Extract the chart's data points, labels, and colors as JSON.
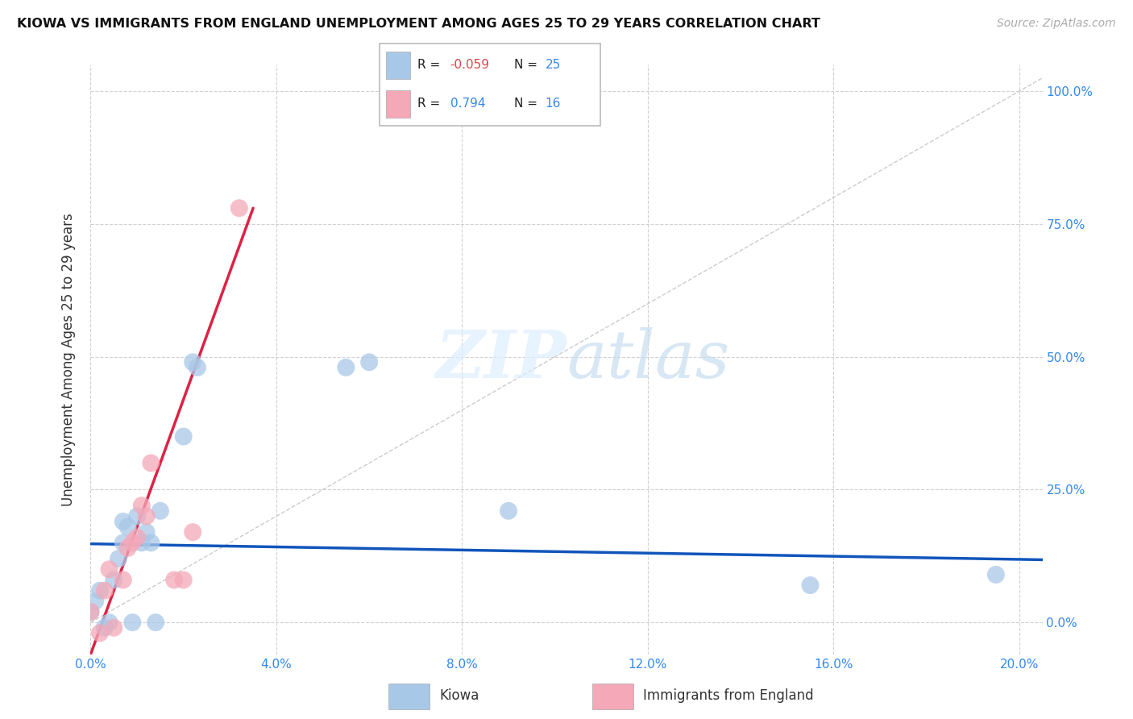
{
  "title": "KIOWA VS IMMIGRANTS FROM ENGLAND UNEMPLOYMENT AMONG AGES 25 TO 29 YEARS CORRELATION CHART",
  "source": "Source: ZipAtlas.com",
  "xlabel_ticks": [
    "0.0%",
    "4.0%",
    "8.0%",
    "12.0%",
    "16.0%",
    "20.0%"
  ],
  "ylabel_right_ticks": [
    "0.0%",
    "25.0%",
    "50.0%",
    "75.0%",
    "100.0%"
  ],
  "xlabel_values": [
    0.0,
    0.04,
    0.08,
    0.12,
    0.16,
    0.2
  ],
  "ylabel_values": [
    0.0,
    0.25,
    0.5,
    0.75,
    1.0
  ],
  "xlim": [
    0.0,
    0.205
  ],
  "ylim": [
    -0.06,
    1.05
  ],
  "kiowa_color": "#a8c8e8",
  "england_color": "#f4a8b8",
  "kiowa_line_color": "#1155bb",
  "england_line_color": "#dd2244",
  "diagonal_color": "#cccccc",
  "kiowa_scatter_x": [
    0.0,
    0.001,
    0.002,
    0.003,
    0.004,
    0.005,
    0.006,
    0.007,
    0.007,
    0.008,
    0.009,
    0.01,
    0.011,
    0.012,
    0.013,
    0.014,
    0.015,
    0.02,
    0.022,
    0.023,
    0.055,
    0.06,
    0.09,
    0.155,
    0.195
  ],
  "kiowa_scatter_y": [
    0.02,
    0.04,
    0.06,
    -0.01,
    0.0,
    0.08,
    0.12,
    0.19,
    0.15,
    0.18,
    0.0,
    0.2,
    0.15,
    0.17,
    0.15,
    0.0,
    0.21,
    0.35,
    0.49,
    0.48,
    0.48,
    0.49,
    0.21,
    0.07,
    0.09
  ],
  "england_scatter_x": [
    0.0,
    0.002,
    0.003,
    0.004,
    0.005,
    0.007,
    0.008,
    0.009,
    0.01,
    0.011,
    0.012,
    0.013,
    0.018,
    0.02,
    0.022,
    0.032
  ],
  "england_scatter_y": [
    0.02,
    -0.02,
    0.06,
    0.1,
    -0.01,
    0.08,
    0.14,
    0.15,
    0.16,
    0.22,
    0.2,
    0.3,
    0.08,
    0.08,
    0.17,
    0.78
  ],
  "kiowa_trend_x": [
    0.0,
    0.205
  ],
  "kiowa_trend_y": [
    0.148,
    0.118
  ],
  "england_trend_x": [
    0.0,
    0.035
  ],
  "england_trend_y": [
    -0.06,
    0.78
  ],
  "legend_r_kiowa": "-0.059",
  "legend_n_kiowa": "25",
  "legend_r_england": "0.794",
  "legend_n_england": "16",
  "legend_r_color_kiowa": "#dd4444",
  "legend_r_color_england": "#3388ee",
  "legend_n_color": "#3388ee",
  "ylabel_label": "Unemployment Among Ages 25 to 29 years"
}
